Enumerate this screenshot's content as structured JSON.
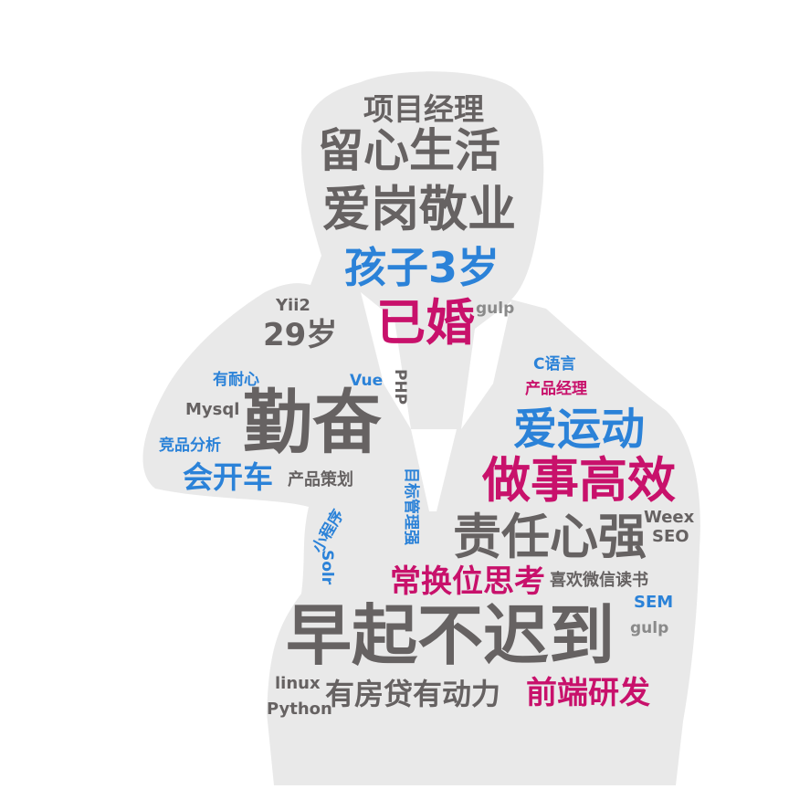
{
  "palette": {
    "silhouette": "#e9e9e9",
    "gray": "#666262",
    "blue": "#2b82d8",
    "magenta": "#c8116b",
    "lightgray": "#8a8a8a"
  },
  "words": {
    "xiangmu_jingli": "项目经理",
    "liuxin_shenghuo": "留心生活",
    "aigang_jingye": "爱岗敬业",
    "haizi_3sui": "孩子3岁",
    "yihun": "已婚",
    "gulp_1": "gulp",
    "yii2": "Yii2",
    "age_29": "29岁",
    "c_yuyan": "C语言",
    "chanpin_jingli": "产品经理",
    "you_naixin": "有耐心",
    "vue": "Vue",
    "php": "PHP",
    "mysql": "Mysql",
    "qinfen": "勤奋",
    "ai_yundong": "爱运动",
    "jingpin_fenxi": "竞品分析",
    "hui_kaiche": "会开车",
    "zuoshi_gaoxiao": "做事高效",
    "chanpin_cehua": "产品策划",
    "mubiao_guanli": "目标管理强",
    "xiao_chengxu": "小程序",
    "zeren_xinqiang": "责任心强",
    "weex": "Weex",
    "seo": "SEO",
    "solr": "Solr",
    "changhuan_weisikao": "常换位思考",
    "xihuan_weixin_dushu": "喜欢微信读书",
    "sem": "SEM",
    "zaoqi_buchidao": "早起不迟到",
    "gulp_2": "gulp",
    "linux": "linux",
    "python": "Python",
    "youfangdai": "有房贷有动力",
    "qianduan_yanfa": "前端研发"
  }
}
